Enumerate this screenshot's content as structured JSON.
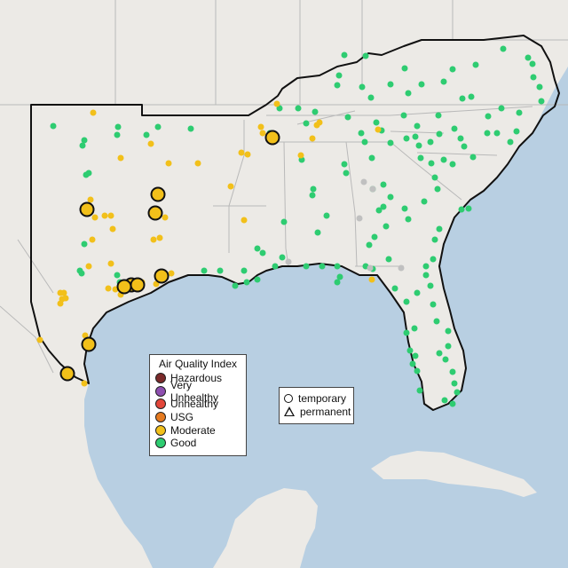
{
  "legend": {
    "title": "Air Quality Index",
    "categories": [
      {
        "label": "Hazardous",
        "color": "#7b2a2a"
      },
      {
        "label": "Very Unhealthy",
        "color": "#8e4fb0"
      },
      {
        "label": "Unhealthy",
        "color": "#e2463a"
      },
      {
        "label": "USG",
        "color": "#e57a1f"
      },
      {
        "label": "Moderate",
        "color": "#f2c01a"
      },
      {
        "label": "Good",
        "color": "#2ecc71"
      }
    ]
  },
  "site_type_legend": {
    "temporary": "temporary",
    "permanent": "permanent"
  },
  "colors": {
    "ocean": "#b8cfe2",
    "land": "#eceae6",
    "boundary": "#111111",
    "no_data": "#c0c0c0"
  }
}
